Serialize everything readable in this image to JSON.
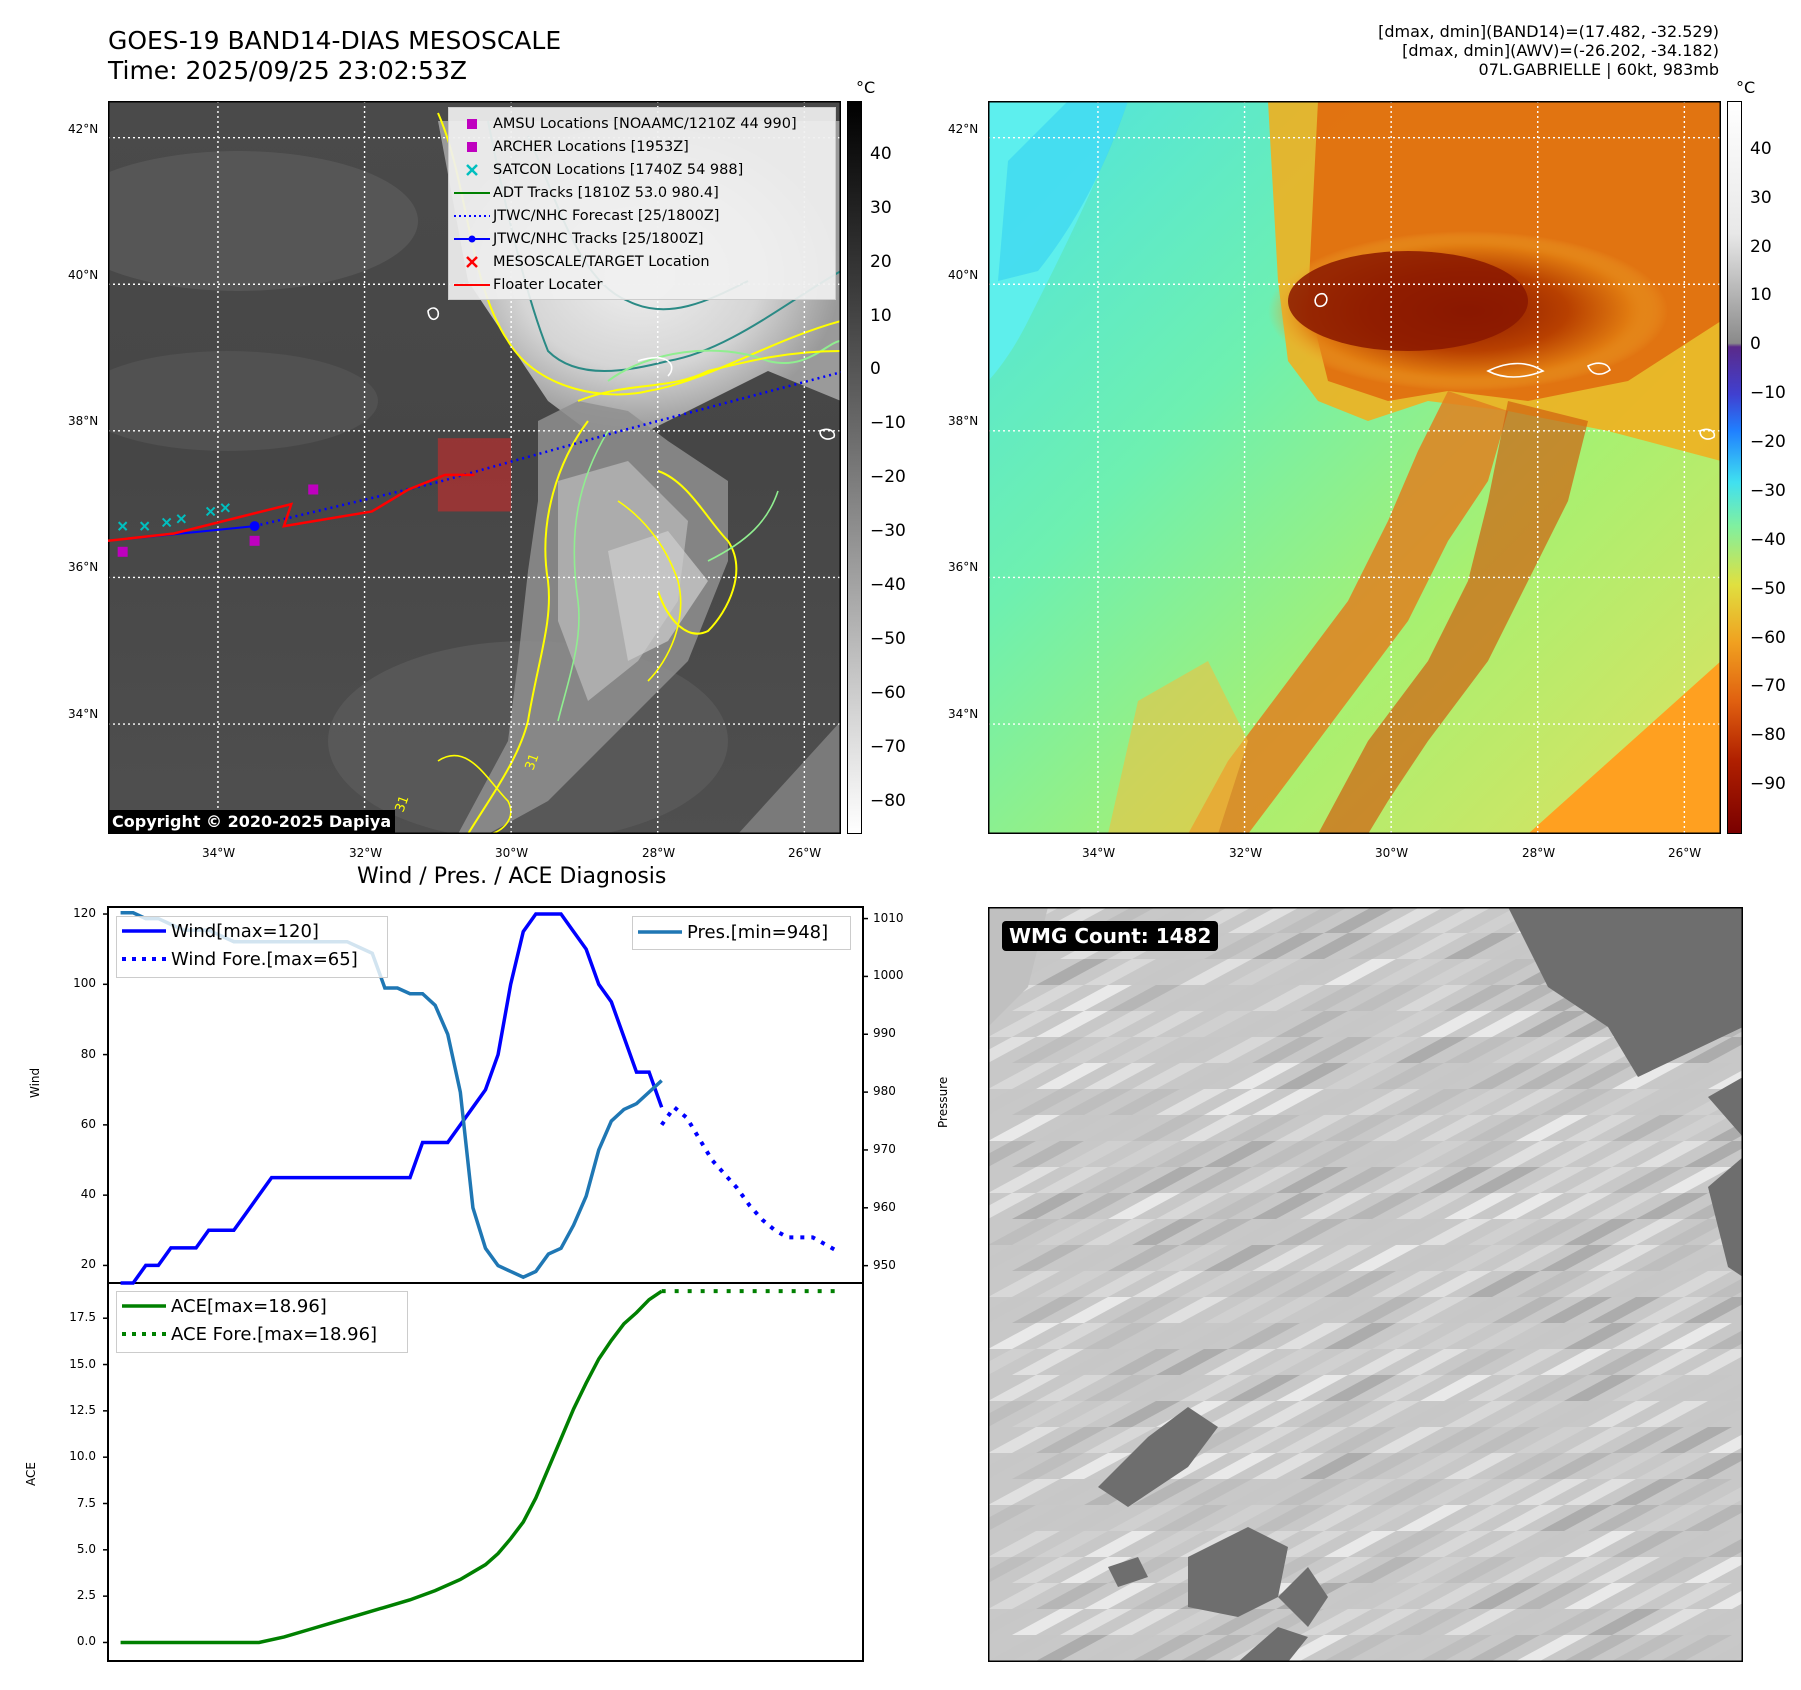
{
  "header": {
    "title_line1": "GOES-19 BAND14-DIAS MESOSCALE",
    "title_line2": "Time: 2025/09/25 23:02:53Z",
    "info_line1": "[dmax, dmin](BAND14)=(17.482, -32.529)",
    "info_line2": "[dmax, dmin](AWV)=(-26.202, -34.182)",
    "info_line3": "07L.GABRIELLE | 60kt, 983mb"
  },
  "map_axes": {
    "lat_labels": [
      "42°N",
      "40°N",
      "38°N",
      "36°N",
      "34°N"
    ],
    "lon_labels": [
      "34°W",
      "32°W",
      "30°W",
      "28°W",
      "26°W"
    ],
    "lat_range": [
      32.5,
      42.5
    ],
    "lon_range": [
      -35.5,
      -25.5
    ],
    "grid": true
  },
  "left_map": {
    "copyright": "Copyright © 2020-2025 Dapiya",
    "colorbar_unit": "°C",
    "colorbar_ticks": [
      "40",
      "30",
      "20",
      "10",
      "0",
      "−10",
      "−20",
      "−30",
      "−40",
      "−50",
      "−60",
      "−70",
      "−80"
    ],
    "contour_label": "31",
    "legend": [
      {
        "label": "AMSU Locations [NOAAMC/1210Z 44 990]",
        "symbol": "square",
        "color": "#bf00bf"
      },
      {
        "label": "ARCHER Locations [1953Z]",
        "symbol": "square",
        "color": "#bf00bf"
      },
      {
        "label": "SATCON Locations [1740Z 54 988]",
        "symbol": "x",
        "color": "#00bfbf"
      },
      {
        "label": "ADT Tracks [1810Z 53.0 980.4]",
        "symbol": "line",
        "color": "#008000"
      },
      {
        "label": "JTWC/NHC Forecast [25/1800Z]",
        "symbol": "dotted",
        "color": "#0000ff"
      },
      {
        "label": "JTWC/NHC Tracks [25/1800Z]",
        "symbol": "line-dot",
        "color": "#0000ff"
      },
      {
        "label": "MESOSCALE/TARGET Location",
        "symbol": "x",
        "color": "#ff0000"
      },
      {
        "label": "Floater Locater",
        "symbol": "line",
        "color": "#ff0000"
      }
    ],
    "tracks": {
      "floater_locater": [
        [
          -35.5,
          36.5
        ],
        [
          -34.6,
          36.6
        ],
        [
          -33.0,
          37.0
        ],
        [
          -33.1,
          36.7
        ],
        [
          -31.9,
          36.9
        ],
        [
          -31.4,
          37.2
        ],
        [
          -30.9,
          37.4
        ],
        [
          -30.5,
          37.4
        ]
      ],
      "jtwc_track": [
        [
          -35.5,
          36.5
        ],
        [
          -34.5,
          36.6
        ],
        [
          -33.5,
          36.7
        ]
      ],
      "jtwc_forecast": [
        [
          -33.5,
          36.7
        ],
        [
          -31.0,
          37.3
        ],
        [
          -28.5,
          38.0
        ],
        [
          -25.5,
          38.8
        ]
      ],
      "satcon": [
        [
          -35.3,
          36.7
        ],
        [
          -35.0,
          36.7
        ],
        [
          -34.7,
          36.75
        ],
        [
          -34.5,
          36.8
        ],
        [
          -34.1,
          36.9
        ],
        [
          -33.9,
          36.95
        ]
      ],
      "amsu": [
        [
          -35.3,
          36.35
        ]
      ],
      "archer": [
        [
          -32.7,
          37.2
        ],
        [
          -33.5,
          36.5
        ]
      ]
    },
    "mesoscale_box": {
      "lon": [
        -31.0,
        -30.0
      ],
      "lat": [
        36.9,
        37.9
      ]
    }
  },
  "right_map": {
    "colorbar_unit": "°C",
    "colorbar_ticks": [
      "40",
      "30",
      "20",
      "10",
      "0",
      "−10",
      "−20",
      "−30",
      "−40",
      "−50",
      "−60",
      "−70",
      "−80",
      "−90"
    ]
  },
  "chart_data": [
    {
      "type": "line",
      "title": "Wind / Pres. / ACE Diagnosis",
      "ylabel": "Wind",
      "y2label": "Pressure",
      "ylim": [
        15,
        122
      ],
      "y2lim": [
        947,
        1012
      ],
      "xlim": [
        0,
        60
      ],
      "yticks": [
        20,
        40,
        60,
        80,
        100,
        120
      ],
      "y2ticks": [
        950,
        960,
        970,
        980,
        990,
        1000,
        1010
      ],
      "legend_left": [
        "Wind[max=120]",
        "Wind Fore.[max=65]"
      ],
      "legend_right": [
        "Pres.[min=948]"
      ],
      "series": [
        {
          "name": "Wind[max=120]",
          "color": "#0000ff",
          "style": "solid",
          "x": [
            1,
            2,
            3,
            4,
            5,
            6,
            7,
            8,
            9,
            10,
            11,
            12,
            13,
            14,
            15,
            16,
            17,
            18,
            19,
            20,
            21,
            22,
            23,
            24,
            25,
            26,
            27,
            28,
            29,
            30,
            31,
            32,
            33,
            34,
            35,
            36,
            37,
            38,
            39,
            40,
            41,
            42,
            43,
            44
          ],
          "values": [
            15,
            15,
            20,
            20,
            25,
            25,
            25,
            30,
            30,
            30,
            35,
            40,
            45,
            45,
            45,
            45,
            45,
            45,
            45,
            45,
            45,
            45,
            45,
            45,
            55,
            55,
            55,
            60,
            65,
            70,
            80,
            100,
            115,
            120,
            120,
            120,
            115,
            110,
            100,
            95,
            85,
            75,
            75,
            65
          ]
        },
        {
          "name": "Wind Fore.[max=65]",
          "color": "#0000ff",
          "style": "dotted",
          "x": [
            44,
            45,
            46,
            47,
            48,
            49,
            50,
            51,
            52,
            53,
            54,
            55,
            56,
            57,
            58
          ],
          "values": [
            60,
            65,
            62,
            56,
            50,
            46,
            42,
            37,
            33,
            30,
            28,
            28,
            28,
            26,
            24
          ]
        },
        {
          "name": "Pres.[min=948]",
          "color": "#1f77b4",
          "style": "solid",
          "axis": "right",
          "x": [
            1,
            2,
            3,
            4,
            5,
            6,
            7,
            8,
            9,
            10,
            11,
            12,
            13,
            14,
            15,
            16,
            17,
            18,
            19,
            20,
            21,
            22,
            23,
            24,
            25,
            26,
            27,
            28,
            29,
            30,
            31,
            32,
            33,
            34,
            35,
            36,
            37,
            38,
            39,
            40,
            41,
            42,
            43,
            44
          ],
          "values": [
            1011,
            1011,
            1010,
            1010,
            1009,
            1008,
            1008,
            1008,
            1007,
            1006,
            1006,
            1006,
            1006,
            1006,
            1006,
            1006,
            1006,
            1006,
            1006,
            1005,
            1004,
            998,
            998,
            997,
            997,
            995,
            990,
            980,
            960,
            953,
            950,
            949,
            948,
            949,
            952,
            953,
            957,
            962,
            970,
            975,
            977,
            978,
            980,
            982
          ]
        }
      ]
    },
    {
      "type": "line",
      "ylabel": "ACE",
      "ylim": [
        -1,
        19.4
      ],
      "xlim": [
        0,
        60
      ],
      "yticks": [
        "0.0",
        "2.5",
        "5.0",
        "7.5",
        "10.0",
        "12.5",
        "15.0",
        "17.5"
      ],
      "legend": [
        "ACE[max=18.96]",
        "ACE Fore.[max=18.96]"
      ],
      "series": [
        {
          "name": "ACE[max=18.96]",
          "color": "#008000",
          "style": "solid",
          "x": [
            1,
            2,
            4,
            6,
            8,
            10,
            11,
            12,
            14,
            16,
            18,
            20,
            22,
            24,
            26,
            28,
            29,
            30,
            31,
            32,
            33,
            34,
            35,
            36,
            37,
            38,
            39,
            40,
            41,
            42,
            43,
            44
          ],
          "values": [
            0,
            0,
            0,
            0,
            0,
            0,
            0,
            0,
            0.3,
            0.7,
            1.1,
            1.5,
            1.9,
            2.3,
            2.8,
            3.4,
            3.8,
            4.2,
            4.8,
            5.6,
            6.5,
            7.8,
            9.4,
            11.0,
            12.6,
            14.0,
            15.3,
            16.3,
            17.2,
            17.8,
            18.5,
            18.96
          ]
        },
        {
          "name": "ACE Fore.[max=18.96]",
          "color": "#008000",
          "style": "dotted",
          "x": [
            44,
            58
          ],
          "values": [
            18.96,
            18.96
          ]
        }
      ]
    }
  ],
  "wmg_panel": {
    "label": "WMG Count: 1482"
  }
}
